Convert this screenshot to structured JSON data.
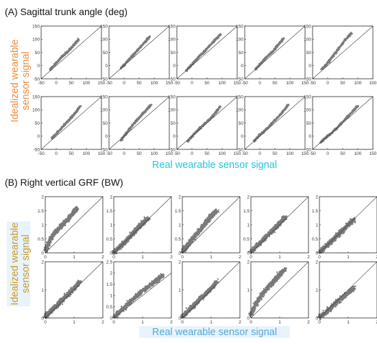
{
  "colors": {
    "data": "#7a7a7a",
    "identity_line": "#333333",
    "axes": "#222222",
    "label_orange": "#f08a3a",
    "label_gold": "#c79a2a",
    "label_cyan": "#1ec7e0",
    "label_blue": "#4fa8d8",
    "label_highlight": "#e9f3fb"
  },
  "chart_data": [
    {
      "panel_title": "(A) Sagittal trunk angle (deg)",
      "type": "scatter",
      "grid": false,
      "ylabel_lines": [
        "Idealized wearable",
        "sensor signal"
      ],
      "xlabel": "Real wearable sensor signal",
      "xticks": [
        -50,
        0,
        50,
        100,
        150
      ],
      "yticks": [
        -50,
        0,
        50,
        100,
        150
      ],
      "xlim": [
        -50,
        150
      ],
      "ylim": [
        -50,
        150
      ],
      "identity_line": true,
      "subplots": [
        {
          "x": [
            -20,
            0,
            20,
            40,
            60,
            75
          ],
          "y": [
            -15,
            10,
            35,
            55,
            80,
            100
          ]
        },
        {
          "x": [
            -10,
            10,
            30,
            50,
            70,
            85
          ],
          "y": [
            -10,
            15,
            40,
            65,
            90,
            110
          ]
        },
        {
          "x": [
            -20,
            0,
            25,
            50,
            75,
            95
          ],
          "y": [
            -20,
            5,
            35,
            65,
            95,
            120
          ]
        },
        {
          "x": [
            -15,
            5,
            25,
            45,
            65,
            80
          ],
          "y": [
            -15,
            10,
            35,
            55,
            85,
            105
          ]
        },
        {
          "x": [
            -20,
            0,
            20,
            40,
            60,
            80
          ],
          "y": [
            -15,
            10,
            40,
            70,
            100,
            125
          ]
        },
        {
          "x": [
            -15,
            5,
            25,
            45,
            65,
            80
          ],
          "y": [
            -10,
            15,
            40,
            65,
            90,
            115
          ]
        },
        {
          "x": [
            -10,
            10,
            30,
            50,
            70,
            90
          ],
          "y": [
            -15,
            15,
            45,
            70,
            95,
            120
          ]
        },
        {
          "x": [
            -15,
            5,
            30,
            55,
            80,
            95
          ],
          "y": [
            -20,
            5,
            35,
            60,
            90,
            115
          ]
        },
        {
          "x": [
            -20,
            0,
            25,
            50,
            75,
            95
          ],
          "y": [
            -20,
            5,
            30,
            60,
            90,
            120
          ]
        },
        {
          "x": [
            -25,
            0,
            30,
            55,
            80,
            100
          ],
          "y": [
            -25,
            0,
            30,
            60,
            90,
            115
          ]
        }
      ]
    },
    {
      "panel_title": "(B) Right vertical GRF (BW)",
      "type": "scatter",
      "grid": false,
      "ylabel_lines": [
        "Idealized wearable",
        "sensor signal"
      ],
      "xlabel": "Real wearable sensor signal",
      "identity_line": true,
      "subplots": [
        {
          "xticks": [
            0,
            1,
            2
          ],
          "yticks": [
            0,
            0.5,
            1,
            1.5,
            2
          ],
          "xlim": [
            0,
            2
          ],
          "ylim": [
            0,
            2
          ],
          "x": [
            0,
            0.2,
            0.4,
            0.6,
            0.8,
            1.0,
            1.1
          ],
          "y": [
            0.05,
            0.55,
            0.8,
            1.0,
            1.2,
            1.45,
            1.6
          ]
        },
        {
          "xticks": [
            0,
            1,
            2
          ],
          "yticks": [
            0,
            0.5,
            1,
            1.5,
            2
          ],
          "xlim": [
            0,
            2
          ],
          "ylim": [
            0,
            2
          ],
          "x": [
            0,
            0.2,
            0.4,
            0.6,
            0.8,
            1.0,
            1.2
          ],
          "y": [
            0.02,
            0.2,
            0.4,
            0.6,
            0.85,
            1.05,
            1.25
          ]
        },
        {
          "xticks": [
            0,
            1,
            2
          ],
          "yticks": [
            0,
            0.5,
            1,
            1.5,
            2
          ],
          "xlim": [
            0,
            2
          ],
          "ylim": [
            0,
            2
          ],
          "x": [
            0,
            0.2,
            0.4,
            0.6,
            0.8,
            1.0,
            1.2
          ],
          "y": [
            0.05,
            0.3,
            0.55,
            0.8,
            1.05,
            1.3,
            1.5
          ]
        },
        {
          "xticks": [
            0,
            1,
            2
          ],
          "yticks": [
            0,
            0.5,
            1,
            1.5,
            2
          ],
          "xlim": [
            0,
            2
          ],
          "ylim": [
            0,
            2
          ],
          "x": [
            0,
            0.2,
            0.4,
            0.6,
            0.8,
            1.0,
            1.2
          ],
          "y": [
            0.05,
            0.25,
            0.45,
            0.65,
            0.85,
            1.05,
            1.3
          ]
        },
        {
          "xticks": [
            0,
            1,
            2
          ],
          "yticks": [
            0,
            0.5,
            1,
            1.5,
            2
          ],
          "xlim": [
            0,
            2
          ],
          "ylim": [
            0,
            2
          ],
          "x": [
            0,
            0.2,
            0.4,
            0.6,
            0.8,
            1.0,
            1.2
          ],
          "y": [
            0.02,
            0.2,
            0.4,
            0.6,
            0.8,
            1.0,
            1.2
          ]
        },
        {
          "xticks": [
            0,
            1,
            2
          ],
          "yticks": [
            0,
            1,
            2
          ],
          "xlim": [
            0,
            2
          ],
          "ylim": [
            0,
            2
          ],
          "x": [
            0,
            0.2,
            0.4,
            0.6,
            0.8,
            1.0,
            1.2
          ],
          "y": [
            0.05,
            0.25,
            0.45,
            0.65,
            0.85,
            1.05,
            1.3
          ]
        },
        {
          "xticks": [
            0,
            1,
            2
          ],
          "yticks": [
            0,
            0.5,
            1,
            1.5,
            2,
            2.5
          ],
          "xlim": [
            0,
            2
          ],
          "ylim": [
            0,
            2.5
          ],
          "x": [
            0,
            0.3,
            0.6,
            0.9,
            1.2,
            1.5,
            1.7
          ],
          "y": [
            0.05,
            0.4,
            0.75,
            1.1,
            1.4,
            1.7,
            1.9
          ]
        },
        {
          "xticks": [
            0,
            1,
            2
          ],
          "yticks": [
            0,
            1,
            2
          ],
          "xlim": [
            0,
            2
          ],
          "ylim": [
            0,
            2
          ],
          "x": [
            0,
            0.2,
            0.4,
            0.6,
            0.8,
            1.0,
            1.2
          ],
          "y": [
            0.05,
            0.25,
            0.45,
            0.65,
            0.85,
            1.05,
            1.3
          ]
        },
        {
          "xticks": [
            0,
            1,
            2
          ],
          "yticks": [
            0,
            1,
            2
          ],
          "xlim": [
            0,
            2
          ],
          "ylim": [
            0,
            2
          ],
          "x": [
            0,
            0.2,
            0.4,
            0.6,
            0.8,
            1.0,
            1.2
          ],
          "y": [
            0.1,
            0.55,
            0.85,
            1.1,
            1.3,
            1.55,
            1.75
          ]
        },
        {
          "xticks": [
            0,
            1,
            2
          ],
          "yticks": [
            0,
            1,
            2
          ],
          "xlim": [
            0,
            2
          ],
          "ylim": [
            0,
            2
          ],
          "x": [
            0,
            0.2,
            0.4,
            0.6,
            0.8,
            1.0,
            1.2
          ],
          "y": [
            0.02,
            0.18,
            0.36,
            0.55,
            0.72,
            0.9,
            1.05
          ]
        }
      ]
    }
  ]
}
